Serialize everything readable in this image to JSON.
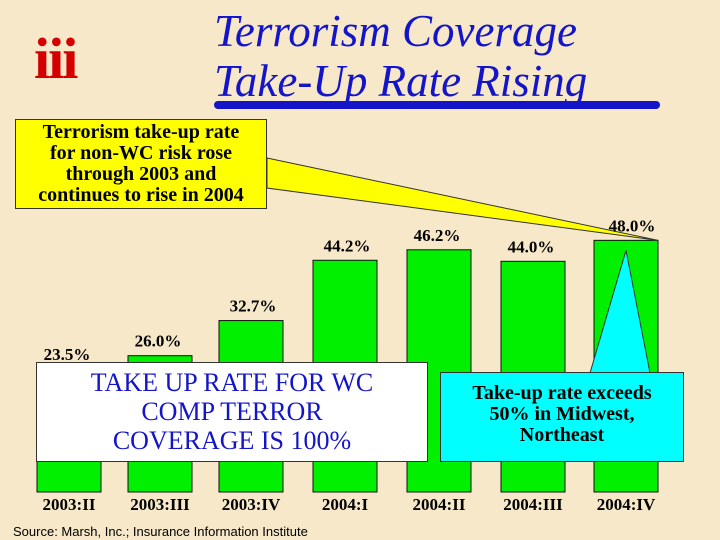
{
  "logo": {
    "text": "iii"
  },
  "title": {
    "line1": "Terrorism Coverage",
    "line2": "Take-Up Rate Rising"
  },
  "callout_yellow": [
    "Terrorism take-up rate",
    "for non-WC risk rose",
    "through 2003 and",
    "continues to rise in 2004"
  ],
  "callout_wc": [
    "TAKE UP RATE FOR WC",
    "COMP TERROR",
    "COVERAGE IS 100%"
  ],
  "callout_cyan": [
    "Take-up rate exceeds",
    "50% in Midwest,",
    "Northeast"
  ],
  "source": "Source:  Marsh, Inc.; Insurance Information Institute",
  "colors": {
    "bar": "#00f000",
    "title": "#1414c8",
    "logo": "#d40000",
    "background": "#f6e8c8",
    "callout_yellow": "#ffff00",
    "callout_cyan": "#00ffff"
  },
  "chart_data": {
    "type": "bar",
    "categories": [
      "2003:II",
      "2003:III",
      "2003:IV",
      "2004:I",
      "2004:II",
      "2004:III",
      "2004:IV"
    ],
    "values": [
      23.5,
      26.0,
      32.7,
      44.2,
      46.2,
      44.0,
      48.0
    ],
    "data_labels": [
      "23.5%",
      "26.0%",
      "32.7%",
      "44.2%",
      "46.2%",
      "44.0%",
      "48.0%"
    ],
    "ylim": [
      0,
      70
    ],
    "grid": false,
    "legend": "none"
  }
}
